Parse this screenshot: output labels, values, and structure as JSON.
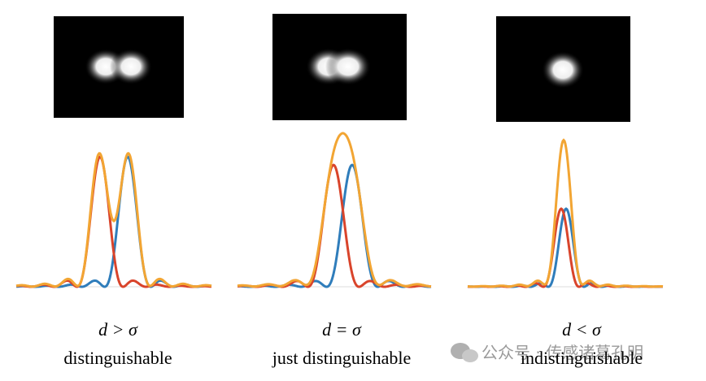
{
  "panels": [
    {
      "condition": "d > σ",
      "label": "distinguishable"
    },
    {
      "condition": "d = σ",
      "label": "just distinguishable"
    },
    {
      "condition": "d < σ",
      "label": "indistinguishable"
    }
  ],
  "watermark": "公众号 · 传感诸葛孔明"
}
